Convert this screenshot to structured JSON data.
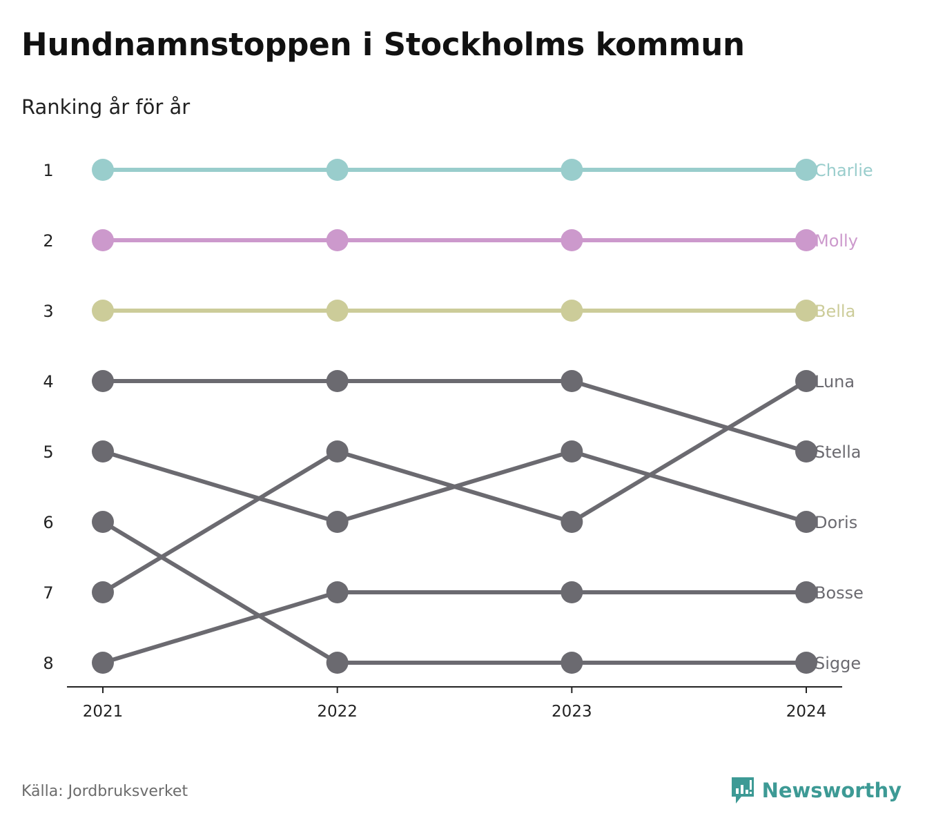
{
  "title": "Hundnamnstoppen i Stockholms kommun",
  "subtitle": "Ranking år för år",
  "source": "Källa: Jordbruksverket",
  "brand": {
    "name": "Newsworthy",
    "icon": "newsworthy-logo-icon",
    "color": "#3d9a95"
  },
  "chart_data": {
    "type": "line",
    "chart_kind": "bump",
    "x": [
      "2021",
      "2022",
      "2023",
      "2024"
    ],
    "y_ticks": [
      "1",
      "2",
      "3",
      "4",
      "5",
      "6",
      "7",
      "8"
    ],
    "ylim": [
      1,
      8
    ],
    "y_inverted": true,
    "grid": false,
    "series": [
      {
        "name": "Charlie",
        "values": [
          1,
          1,
          1,
          1
        ],
        "color": "#99cdcc"
      },
      {
        "name": "Molly",
        "values": [
          2,
          2,
          2,
          2
        ],
        "color": "#cc99cc"
      },
      {
        "name": "Bella",
        "values": [
          3,
          3,
          3,
          3
        ],
        "color": "#cccc99"
      },
      {
        "name": "Luna",
        "values": [
          7,
          5,
          6,
          4
        ],
        "color": "#6b6a70"
      },
      {
        "name": "Stella",
        "values": [
          4,
          4,
          4,
          5
        ],
        "color": "#6b6a70"
      },
      {
        "name": "Doris",
        "values": [
          5,
          6,
          5,
          6
        ],
        "color": "#6b6a70"
      },
      {
        "name": "Bosse",
        "values": [
          8,
          7,
          7,
          7
        ],
        "color": "#6b6a70"
      },
      {
        "name": "Sigge",
        "values": [
          6,
          8,
          8,
          8
        ],
        "color": "#6b6a70"
      }
    ]
  }
}
